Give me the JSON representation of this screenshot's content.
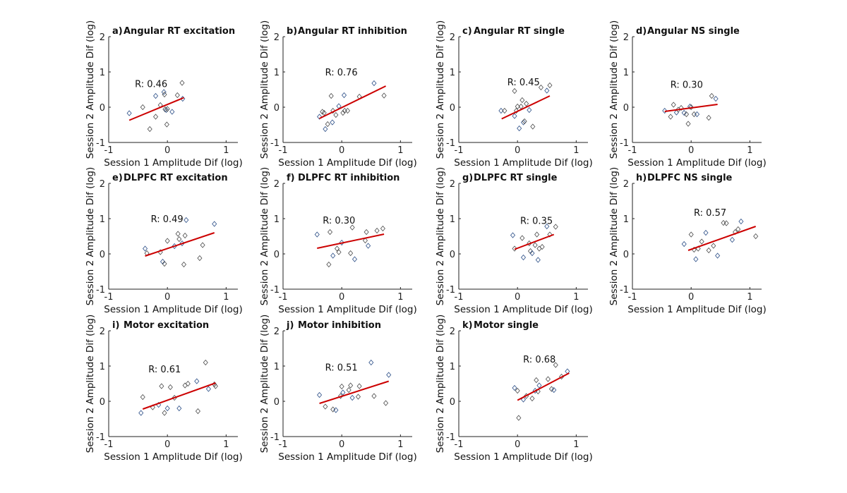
{
  "figure": {
    "xlabel": "Session 1 Amplitude Dif (log)",
    "ylabel": "Session 2 Amplitude Dif (log)",
    "fit_color": "#cc0000",
    "marker_colors": [
      "#4a4a4a",
      "#2a4d86"
    ]
  },
  "chart_data": [
    {
      "type": "scatter",
      "letter": "a)",
      "title": "Angular RT excitation",
      "r_label": "R: 0.46",
      "xlim": [
        -1,
        1.2
      ],
      "ylim": [
        -1,
        2
      ],
      "xticks": [
        "-1",
        "0",
        "1"
      ],
      "yticks": [
        "-1",
        "0",
        "1",
        "2"
      ],
      "points": [
        [
          -0.65,
          -0.17
        ],
        [
          -0.42,
          0.0
        ],
        [
          -0.3,
          -0.62
        ],
        [
          -0.2,
          0.32
        ],
        [
          -0.2,
          -0.27
        ],
        [
          -0.12,
          0.06
        ],
        [
          -0.06,
          0.43
        ],
        [
          -0.05,
          0.36
        ],
        [
          -0.04,
          -0.06
        ],
        [
          -0.02,
          -0.08
        ],
        [
          -0.01,
          -0.49
        ],
        [
          0.0,
          -0.05
        ],
        [
          0.08,
          -0.13
        ],
        [
          0.17,
          0.34
        ],
        [
          0.25,
          0.69
        ],
        [
          0.26,
          0.24
        ]
      ],
      "fit": [
        [
          -0.65,
          -0.37
        ],
        [
          0.28,
          0.27
        ]
      ]
    },
    {
      "type": "scatter",
      "letter": "b)",
      "title": "Angular RT inhibition",
      "r_label": "R: 0.76",
      "xlim": [
        -1,
        1.2
      ],
      "ylim": [
        -1,
        2
      ],
      "xticks": [
        "-1",
        "0",
        "1"
      ],
      "yticks": [
        "-1",
        "0",
        "1",
        "2"
      ],
      "points": [
        [
          -0.38,
          -0.27
        ],
        [
          -0.33,
          -0.13
        ],
        [
          -0.3,
          -0.16
        ],
        [
          -0.28,
          -0.62
        ],
        [
          -0.24,
          -0.48
        ],
        [
          -0.18,
          0.32
        ],
        [
          -0.16,
          -0.43
        ],
        [
          -0.15,
          -0.1
        ],
        [
          -0.1,
          -0.22
        ],
        [
          -0.05,
          0.03
        ],
        [
          0.02,
          -0.16
        ],
        [
          0.05,
          -0.1
        ],
        [
          0.04,
          0.34
        ],
        [
          0.1,
          -0.1
        ],
        [
          0.3,
          0.3
        ],
        [
          0.55,
          0.68
        ],
        [
          0.72,
          0.33
        ]
      ],
      "fit": [
        [
          -0.38,
          -0.32
        ],
        [
          0.75,
          0.6
        ]
      ]
    },
    {
      "type": "scatter",
      "letter": "c)",
      "title": "Angular RT single",
      "r_label": "R: 0.45",
      "xlim": [
        -1,
        1.2
      ],
      "ylim": [
        -1,
        2
      ],
      "xticks": [
        "-1",
        "0",
        "1"
      ],
      "yticks": [
        "-1",
        "0",
        "1",
        "2"
      ],
      "points": [
        [
          -0.28,
          -0.1
        ],
        [
          -0.22,
          -0.1
        ],
        [
          -0.05,
          0.46
        ],
        [
          -0.05,
          -0.25
        ],
        [
          -0.02,
          -0.1
        ],
        [
          0.0,
          0.02
        ],
        [
          0.03,
          -0.6
        ],
        [
          0.06,
          0.02
        ],
        [
          0.08,
          0.2
        ],
        [
          0.1,
          -0.43
        ],
        [
          0.12,
          -0.4
        ],
        [
          0.15,
          0.1
        ],
        [
          0.2,
          -0.08
        ],
        [
          0.26,
          -0.55
        ],
        [
          0.4,
          0.56
        ],
        [
          0.5,
          0.47
        ],
        [
          0.55,
          0.62
        ]
      ],
      "fit": [
        [
          -0.27,
          -0.33
        ],
        [
          0.55,
          0.32
        ]
      ]
    },
    {
      "type": "scatter",
      "letter": "d)",
      "title": "Angular NS single",
      "r_label": "R: 0.30",
      "xlim": [
        -1,
        1.2
      ],
      "ylim": [
        -1,
        2
      ],
      "xticks": [
        "-1",
        "0",
        "1"
      ],
      "yticks": [
        "-1",
        "0",
        "1",
        "2"
      ],
      "points": [
        [
          -0.45,
          -0.1
        ],
        [
          -0.35,
          -0.27
        ],
        [
          -0.3,
          0.07
        ],
        [
          -0.25,
          -0.15
        ],
        [
          -0.22,
          -0.07
        ],
        [
          -0.17,
          -0.02
        ],
        [
          -0.12,
          -0.16
        ],
        [
          -0.08,
          -0.2
        ],
        [
          -0.05,
          -0.47
        ],
        [
          -0.02,
          0.02
        ],
        [
          0.0,
          0.0
        ],
        [
          0.05,
          -0.2
        ],
        [
          0.1,
          -0.2
        ],
        [
          0.3,
          -0.3
        ],
        [
          0.35,
          0.32
        ],
        [
          0.42,
          0.24
        ]
      ],
      "fit": [
        [
          -0.45,
          -0.12
        ],
        [
          0.45,
          0.08
        ]
      ]
    },
    {
      "type": "scatter",
      "letter": "e)",
      "title": "DLPFC RT excitation",
      "r_label": "R: 0.49",
      "xlim": [
        -1,
        1.2
      ],
      "ylim": [
        -1,
        2
      ],
      "xticks": [
        "-1",
        "0",
        "1"
      ],
      "yticks": [
        "-1",
        "0",
        "1",
        "2"
      ],
      "points": [
        [
          -0.38,
          0.15
        ],
        [
          -0.35,
          0.02
        ],
        [
          -0.12,
          0.05
        ],
        [
          -0.08,
          -0.22
        ],
        [
          -0.05,
          -0.28
        ],
        [
          0.0,
          0.37
        ],
        [
          0.12,
          0.22
        ],
        [
          0.18,
          0.57
        ],
        [
          0.2,
          0.42
        ],
        [
          0.25,
          0.3
        ],
        [
          0.28,
          -0.3
        ],
        [
          0.3,
          0.52
        ],
        [
          0.32,
          0.96
        ],
        [
          0.55,
          -0.12
        ],
        [
          0.6,
          0.25
        ],
        [
          0.8,
          0.85
        ]
      ],
      "fit": [
        [
          -0.38,
          -0.06
        ],
        [
          0.8,
          0.6
        ]
      ]
    },
    {
      "type": "scatter",
      "letter": "f)",
      "title": "DLPFC RT inhibition",
      "r_label": "R: 0.30",
      "xlim": [
        -1,
        1.2
      ],
      "ylim": [
        -1,
        2
      ],
      "xticks": [
        "-1",
        "0",
        "1"
      ],
      "yticks": [
        "-1",
        "0",
        "1",
        "2"
      ],
      "points": [
        [
          -0.42,
          0.55
        ],
        [
          -0.22,
          -0.3
        ],
        [
          -0.2,
          0.62
        ],
        [
          -0.15,
          -0.05
        ],
        [
          -0.08,
          0.15
        ],
        [
          -0.05,
          0.05
        ],
        [
          0.0,
          0.32
        ],
        [
          0.15,
          0.02
        ],
        [
          0.18,
          0.75
        ],
        [
          0.22,
          -0.15
        ],
        [
          0.4,
          0.38
        ],
        [
          0.42,
          0.62
        ],
        [
          0.45,
          0.23
        ],
        [
          0.6,
          0.66
        ],
        [
          0.7,
          0.72
        ]
      ],
      "fit": [
        [
          -0.42,
          0.16
        ],
        [
          0.72,
          0.56
        ]
      ]
    },
    {
      "type": "scatter",
      "letter": "g)",
      "title": "DLPFC RT single",
      "r_label": "R: 0.35",
      "xlim": [
        -1,
        1.2
      ],
      "ylim": [
        -1,
        2
      ],
      "xticks": [
        "-1",
        "0",
        "1"
      ],
      "yticks": [
        "-1",
        "0",
        "1",
        "2"
      ],
      "points": [
        [
          -0.08,
          0.53
        ],
        [
          -0.05,
          0.15
        ],
        [
          0.08,
          0.45
        ],
        [
          0.1,
          -0.1
        ],
        [
          0.2,
          0.3
        ],
        [
          0.22,
          0.08
        ],
        [
          0.25,
          0.02
        ],
        [
          0.3,
          0.25
        ],
        [
          0.33,
          0.55
        ],
        [
          0.35,
          -0.17
        ],
        [
          0.37,
          0.15
        ],
        [
          0.42,
          0.2
        ],
        [
          0.5,
          0.78
        ],
        [
          0.55,
          0.55
        ],
        [
          0.65,
          0.77
        ]
      ],
      "fit": [
        [
          -0.05,
          0.13
        ],
        [
          0.62,
          0.55
        ]
      ]
    },
    {
      "type": "scatter",
      "letter": "h)",
      "title": "DLPFC NS single",
      "r_label": "R: 0.57",
      "xlim": [
        -1,
        1.2
      ],
      "ylim": [
        -1,
        2
      ],
      "xticks": [
        "-1",
        "0",
        "1"
      ],
      "yticks": [
        "-1",
        "0",
        "1",
        "2"
      ],
      "points": [
        [
          -0.12,
          0.28
        ],
        [
          0.0,
          0.55
        ],
        [
          0.05,
          0.12
        ],
        [
          0.08,
          -0.15
        ],
        [
          0.12,
          0.15
        ],
        [
          0.18,
          0.35
        ],
        [
          0.25,
          0.6
        ],
        [
          0.3,
          0.1
        ],
        [
          0.38,
          0.23
        ],
        [
          0.45,
          -0.05
        ],
        [
          0.55,
          0.88
        ],
        [
          0.6,
          0.87
        ],
        [
          0.7,
          0.4
        ],
        [
          0.75,
          0.62
        ],
        [
          0.8,
          0.7
        ],
        [
          0.85,
          0.92
        ],
        [
          1.1,
          0.5
        ]
      ],
      "fit": [
        [
          -0.05,
          0.1
        ],
        [
          1.1,
          0.78
        ]
      ]
    },
    {
      "type": "scatter",
      "letter": "i)",
      "title": "Motor excitation",
      "r_label": "R: 0.61",
      "xlim": [
        -1,
        1.2
      ],
      "ylim": [
        -1,
        2
      ],
      "xticks": [
        "-1",
        "0",
        "1"
      ],
      "yticks": [
        "-1",
        "0",
        "1",
        "2"
      ],
      "points": [
        [
          -0.45,
          -0.33
        ],
        [
          -0.42,
          0.12
        ],
        [
          -0.25,
          -0.17
        ],
        [
          -0.15,
          -0.1
        ],
        [
          -0.1,
          0.43
        ],
        [
          -0.05,
          -0.33
        ],
        [
          0.0,
          -0.2
        ],
        [
          0.05,
          0.4
        ],
        [
          0.12,
          0.1
        ],
        [
          0.2,
          -0.2
        ],
        [
          0.3,
          0.45
        ],
        [
          0.35,
          0.5
        ],
        [
          0.5,
          0.57
        ],
        [
          0.52,
          -0.28
        ],
        [
          0.65,
          1.1
        ],
        [
          0.7,
          0.35
        ],
        [
          0.8,
          0.48
        ],
        [
          0.82,
          0.43
        ]
      ],
      "fit": [
        [
          -0.42,
          -0.22
        ],
        [
          0.82,
          0.52
        ]
      ]
    },
    {
      "type": "scatter",
      "letter": "j)",
      "title": "Motor inhibition",
      "r_label": "R: 0.51",
      "xlim": [
        -1,
        1.2
      ],
      "ylim": [
        -1,
        2
      ],
      "xticks": [
        "-1",
        "0",
        "1"
      ],
      "yticks": [
        "-1",
        "0",
        "1",
        "2"
      ],
      "points": [
        [
          -0.38,
          0.18
        ],
        [
          -0.28,
          -0.15
        ],
        [
          -0.15,
          -0.23
        ],
        [
          -0.1,
          -0.25
        ],
        [
          -0.02,
          0.15
        ],
        [
          0.0,
          0.42
        ],
        [
          0.02,
          0.25
        ],
        [
          0.12,
          0.32
        ],
        [
          0.15,
          0.45
        ],
        [
          0.18,
          0.1
        ],
        [
          0.28,
          0.13
        ],
        [
          0.3,
          0.43
        ],
        [
          0.5,
          1.1
        ],
        [
          0.55,
          0.15
        ],
        [
          0.75,
          -0.05
        ],
        [
          0.8,
          0.75
        ]
      ],
      "fit": [
        [
          -0.38,
          -0.06
        ],
        [
          0.8,
          0.57
        ]
      ]
    },
    {
      "type": "scatter",
      "letter": "k)",
      "title": "Motor single",
      "r_label": "R: 0.68",
      "xlim": [
        -1,
        1.2
      ],
      "ylim": [
        -1,
        2
      ],
      "xticks": [
        "-1",
        "0",
        "1"
      ],
      "yticks": [
        "-1",
        "0",
        "1",
        "2"
      ],
      "points": [
        [
          -0.05,
          0.38
        ],
        [
          0.0,
          0.3
        ],
        [
          0.02,
          -0.47
        ],
        [
          0.1,
          0.05
        ],
        [
          0.15,
          0.15
        ],
        [
          0.25,
          0.08
        ],
        [
          0.3,
          0.3
        ],
        [
          0.32,
          0.6
        ],
        [
          0.35,
          0.28
        ],
        [
          0.37,
          0.45
        ],
        [
          0.52,
          0.63
        ],
        [
          0.58,
          0.35
        ],
        [
          0.62,
          0.32
        ],
        [
          0.65,
          1.03
        ],
        [
          0.75,
          0.7
        ],
        [
          0.85,
          0.85
        ]
      ],
      "fit": [
        [
          0.0,
          0.03
        ],
        [
          0.88,
          0.8
        ]
      ]
    }
  ]
}
